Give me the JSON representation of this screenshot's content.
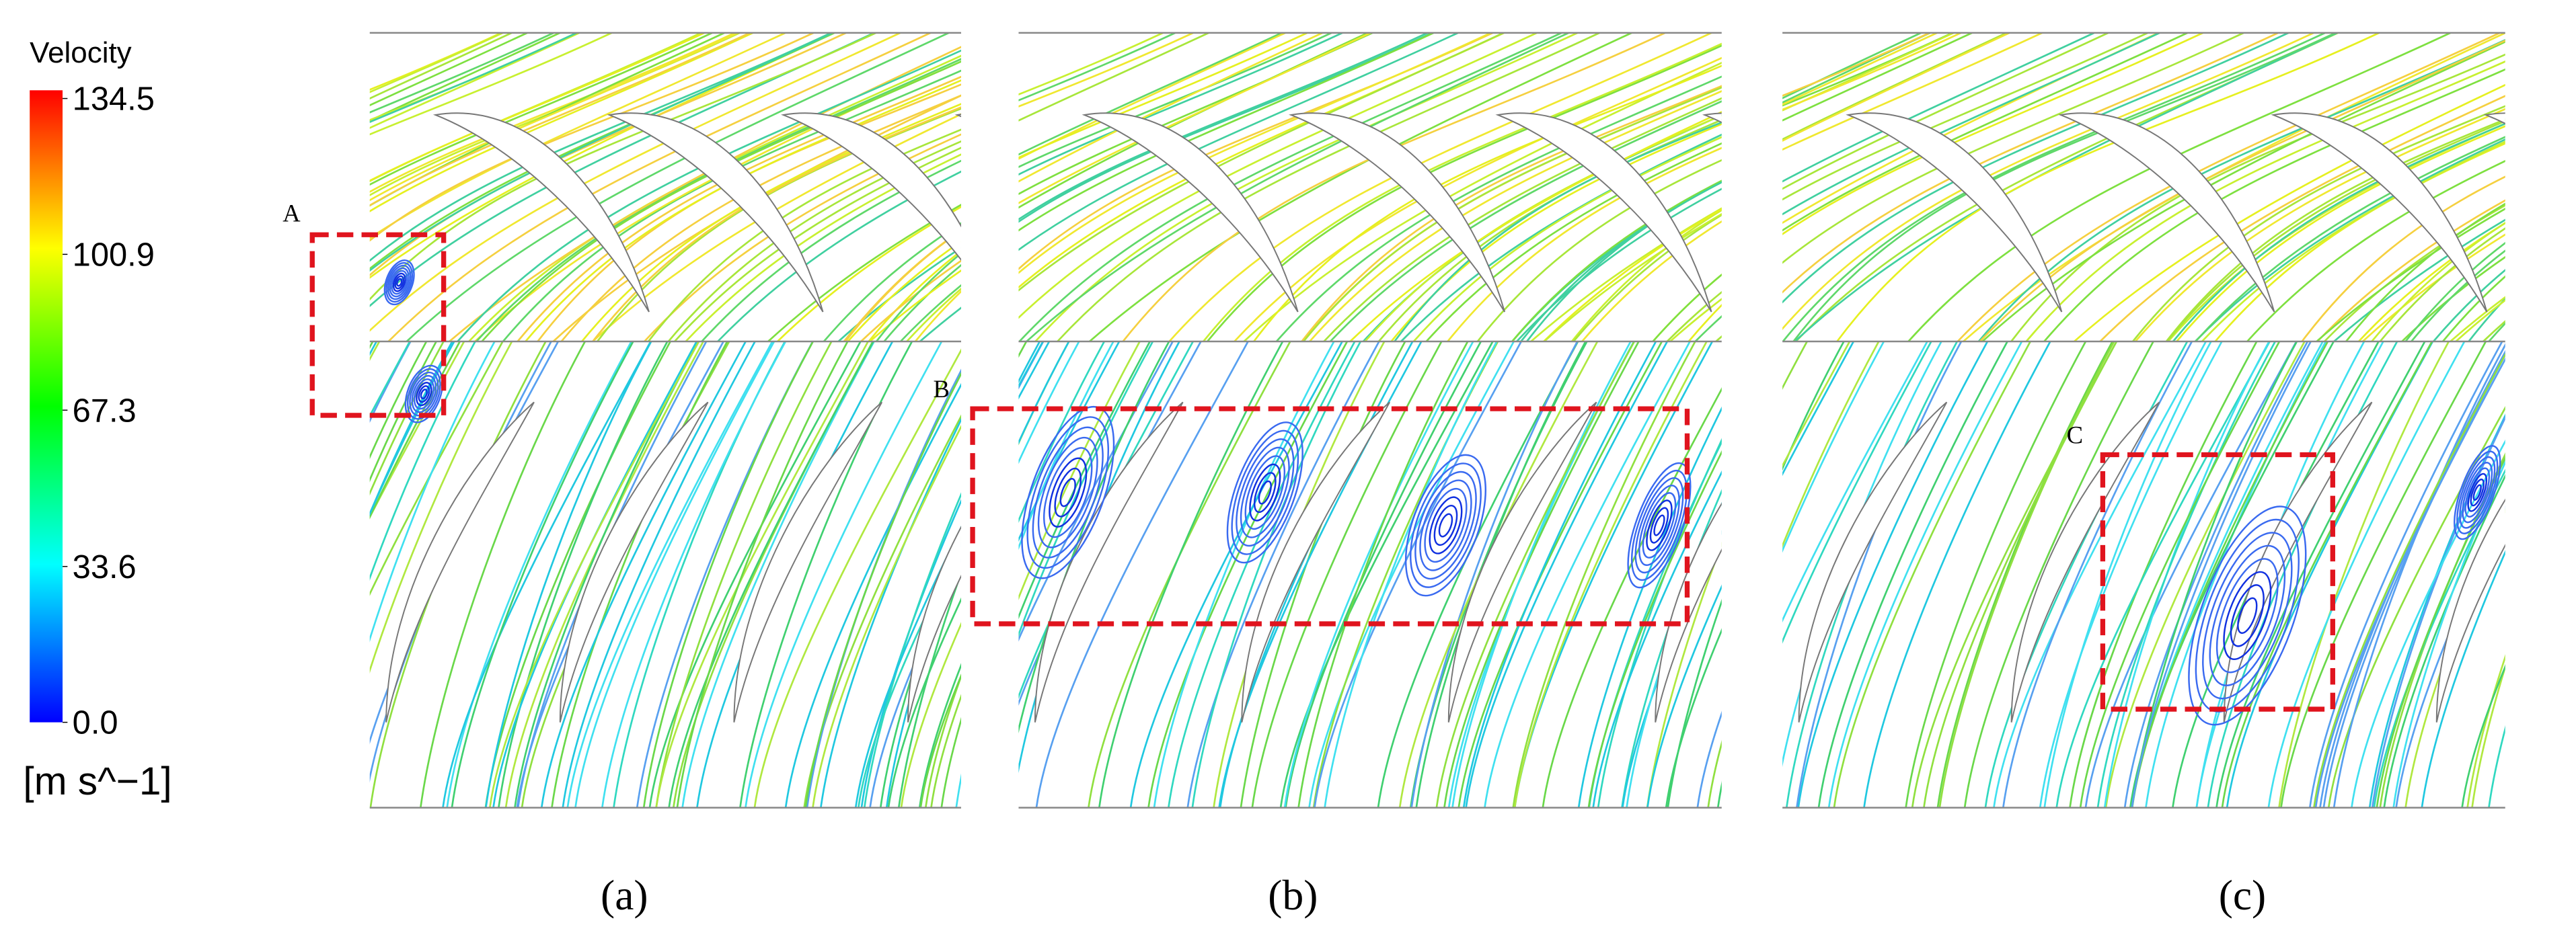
{
  "colorbar": {
    "title": "Velocity",
    "ticks": [
      134.5,
      100.9,
      67.3,
      33.6,
      {
        "value": 0,
        "label": "0.0"
      }
    ],
    "unit": "[m s^−1]"
  },
  "panels": [
    {
      "label": "(a)",
      "box_label": "A"
    },
    {
      "label": "(b)",
      "box_label": "B"
    },
    {
      "label": "(c)",
      "box_label": "C"
    }
  ]
}
